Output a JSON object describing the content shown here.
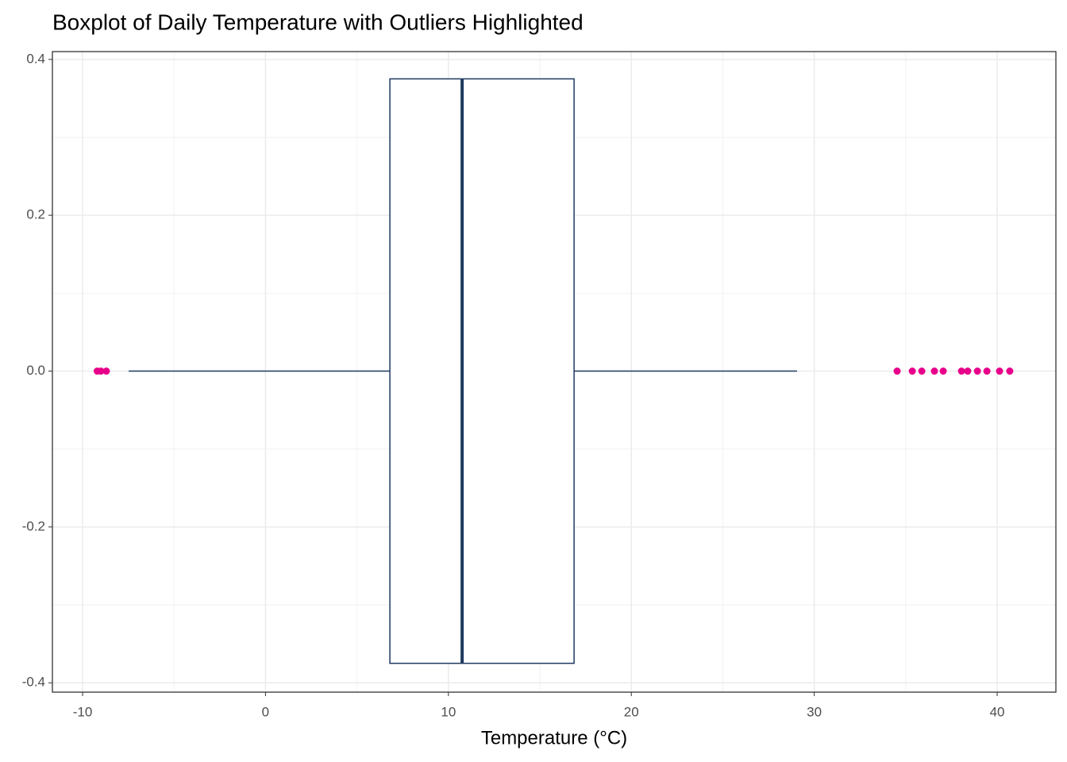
{
  "chart_data": {
    "type": "boxplot",
    "orientation": "horizontal",
    "title": "Boxplot of Daily Temperature with Outliers Highlighted",
    "x_label": "Temperature (°C)",
    "whisker_low": -7.48,
    "q1": 6.8,
    "median": 10.75,
    "q3": 16.87,
    "whisker_high": 29.06,
    "outliers": [
      -9.2,
      -9.0,
      -8.7,
      34.53,
      35.36,
      35.88,
      36.57,
      37.05,
      38.05,
      38.39,
      38.92,
      39.44,
      40.13,
      40.69
    ],
    "box_width": 0.75,
    "box_color": "#1f3a5f",
    "outlier_color": "#e7008a",
    "xlim": [
      -11.65,
      43.21
    ],
    "xticks": [
      -10,
      0,
      10,
      20,
      30,
      40
    ],
    "x_minor_ticks": [
      -5,
      5,
      15,
      25,
      35
    ],
    "ylim": [
      -0.412,
      0.41
    ],
    "yticks": [
      -0.4,
      -0.2,
      {
        "value": 0,
        "label": "0.0"
      },
      0.2,
      0.4
    ],
    "y_minor_ticks": [
      -0.3,
      -0.1,
      0.1,
      0.3
    ],
    "grid": true
  }
}
